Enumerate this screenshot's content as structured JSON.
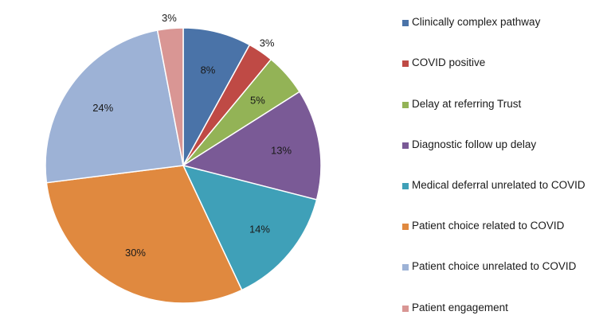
{
  "chart_data": {
    "type": "pie",
    "title": "",
    "legend_position": "right",
    "series": [
      {
        "values": [
          8,
          3,
          5,
          13,
          14,
          30,
          24,
          3
        ],
        "labels": [
          "8%",
          "3%",
          "5%",
          "13%",
          "14%",
          "30%",
          "24%",
          "3%"
        ]
      }
    ],
    "categories": [
      "Clinically complex pathway",
      "COVID positive",
      "Delay at referring Trust",
      "Diagnostic follow up delay",
      "Medical deferral unrelated to COVID",
      "Patient choice related to COVID",
      "Patient choice unrelated to COVID",
      "Patient engagement"
    ],
    "colors": [
      "#4a73a8",
      "#bf4a45",
      "#93b356",
      "#7a5a96",
      "#3fa0b8",
      "#e0893f",
      "#9db2d6",
      "#d99694"
    ],
    "start_angle": "12 o'clock",
    "direction": "clockwise"
  }
}
